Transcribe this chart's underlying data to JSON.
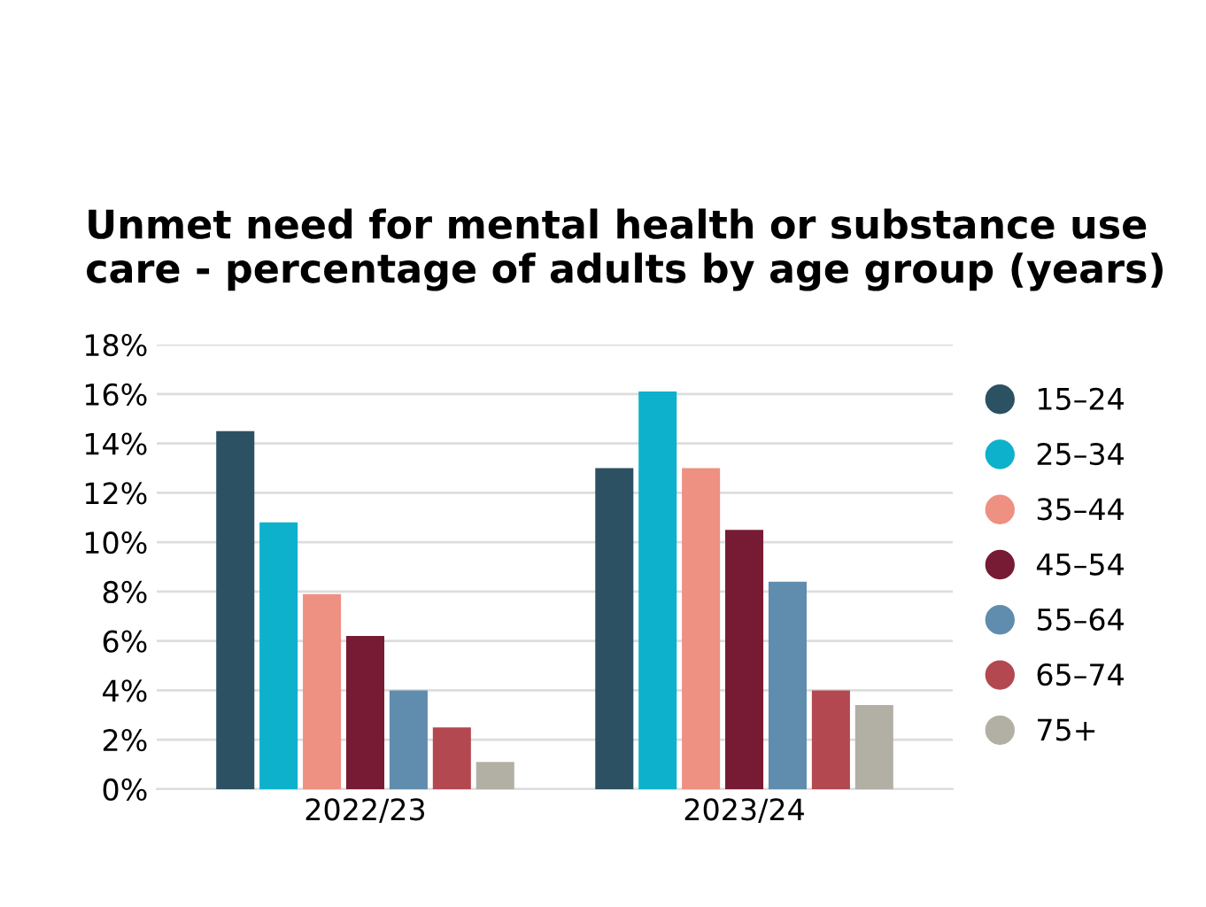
{
  "chart_data": {
    "type": "bar",
    "title": "Unmet need for mental health or substance use care - percentage of adults by age group (years)",
    "categories": [
      "2022/23",
      "2023/24"
    ],
    "series": [
      {
        "name": "15–24",
        "color": "#2b5163",
        "values": [
          14.5,
          13.0
        ]
      },
      {
        "name": "25–34",
        "color": "#0db1cc",
        "values": [
          10.8,
          16.1
        ]
      },
      {
        "name": "35–44",
        "color": "#ee9082",
        "values": [
          7.9,
          13.0
        ]
      },
      {
        "name": "45–54",
        "color": "#761b33",
        "values": [
          6.2,
          10.5
        ]
      },
      {
        "name": "55–64",
        "color": "#608cad",
        "values": [
          4.0,
          8.4
        ]
      },
      {
        "name": "65–74",
        "color": "#b34851",
        "values": [
          2.5,
          4.0
        ]
      },
      {
        "name": "75+",
        "color": "#b2b0a4",
        "values": [
          1.1,
          3.4
        ]
      }
    ],
    "ylim": [
      0,
      18
    ],
    "yticks": [
      {
        "value": 0,
        "label": "0%"
      },
      {
        "value": 2,
        "label": "2%"
      },
      {
        "value": 4,
        "label": "4%"
      },
      {
        "value": 6,
        "label": "6%"
      },
      {
        "value": 8,
        "label": "8%"
      },
      {
        "value": 10,
        "label": "10%"
      },
      {
        "value": 12,
        "label": "12%"
      },
      {
        "value": 14,
        "label": "14%"
      },
      {
        "value": 16,
        "label": "16%"
      },
      {
        "value": 18,
        "label": "18%"
      }
    ],
    "grid": "y",
    "legend": "right"
  }
}
